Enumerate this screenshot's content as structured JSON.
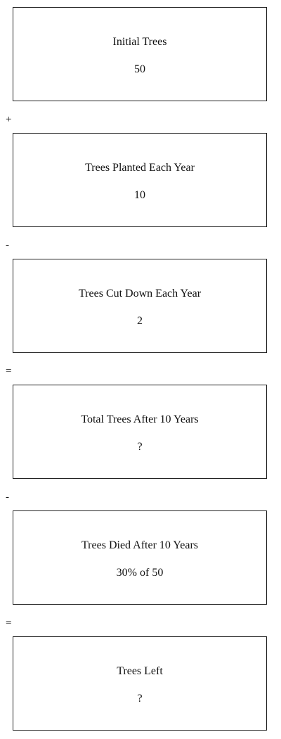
{
  "boxes": [
    {
      "title": "Initial Trees",
      "value": "50"
    },
    {
      "title": "Trees Planted Each Year",
      "value": "10"
    },
    {
      "title": "Trees Cut Down Each Year",
      "value": "2"
    },
    {
      "title": "Total Trees After 10 Years",
      "value": "?"
    },
    {
      "title": "Trees Died After 10 Years",
      "value": "30% of 50"
    },
    {
      "title": "Trees Left",
      "value": "?"
    }
  ],
  "operators": [
    "+",
    "-",
    "=",
    "-",
    "="
  ]
}
